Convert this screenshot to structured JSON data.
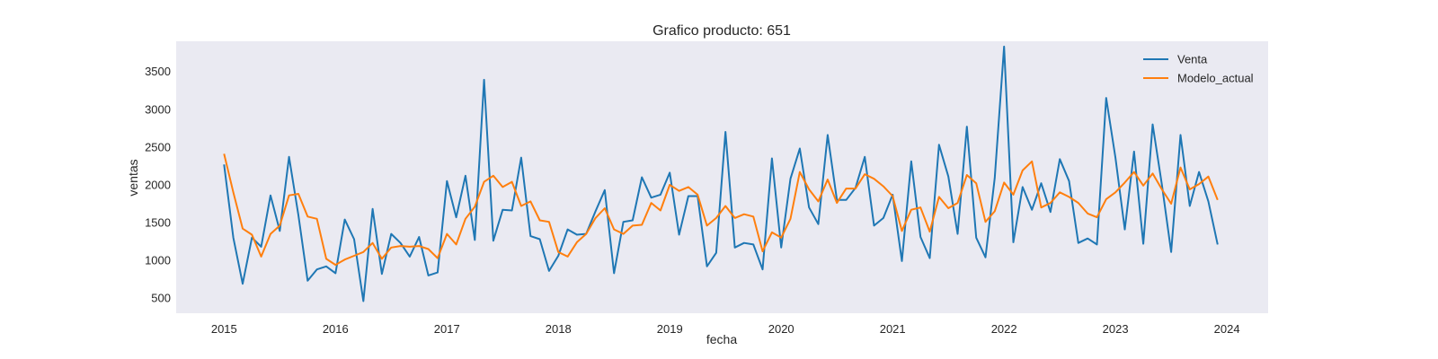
{
  "chart_data": {
    "type": "line",
    "title": "Grafico producto: 651",
    "xlabel": "fecha",
    "ylabel": "ventas",
    "xlim": [
      2014.57,
      2024.37
    ],
    "ylim": [
      300,
      3900
    ],
    "xticks": [
      2015,
      2016,
      2017,
      2018,
      2019,
      2020,
      2021,
      2022,
      2023,
      2024
    ],
    "xtick_labels": [
      "2015",
      "2016",
      "2017",
      "2018",
      "2019",
      "2020",
      "2021",
      "2022",
      "2023",
      "2024"
    ],
    "yticks": [
      500,
      1000,
      1500,
      2000,
      2500,
      3000,
      3500
    ],
    "ytick_labels": [
      "500",
      "1000",
      "1500",
      "2000",
      "2500",
      "3000",
      "3500"
    ],
    "x_start": 2015,
    "x_step": 0.0833333,
    "legend_position": "top-right",
    "series": [
      {
        "name": "Venta",
        "color": "#1f77b4",
        "values": [
          2270,
          1300,
          690,
          1300,
          1180,
          1860,
          1390,
          2370,
          1600,
          730,
          880,
          920,
          830,
          1540,
          1280,
          460,
          1680,
          820,
          1350,
          1230,
          1050,
          1310,
          800,
          840,
          2050,
          1570,
          2120,
          1270,
          3390,
          1260,
          1670,
          1660,
          2360,
          1320,
          1280,
          860,
          1060,
          1410,
          1340,
          1350,
          1650,
          1930,
          830,
          1510,
          1530,
          2100,
          1830,
          1870,
          2160,
          1340,
          1850,
          1850,
          920,
          1100,
          2700,
          1170,
          1230,
          1210,
          880,
          2350,
          1170,
          2080,
          2480,
          1700,
          1480,
          2660,
          1800,
          1800,
          1960,
          2370,
          1460,
          1560,
          1870,
          990,
          2310,
          1310,
          1030,
          2530,
          2110,
          1350,
          2770,
          1300,
          1040,
          2090,
          3830,
          1240,
          1970,
          1670,
          2020,
          1640,
          2340,
          2050,
          1230,
          1290,
          1210,
          3150,
          2360,
          1410,
          2440,
          1220,
          2800,
          2000,
          1110,
          2660,
          1720,
          2170,
          1780,
          1210
        ]
      },
      {
        "name": "Modelo_actual",
        "color": "#ff7f0e",
        "values": [
          2410,
          1900,
          1420,
          1340,
          1050,
          1350,
          1460,
          1860,
          1880,
          1580,
          1550,
          1020,
          940,
          1010,
          1060,
          1110,
          1230,
          1020,
          1170,
          1190,
          1180,
          1190,
          1150,
          1030,
          1350,
          1210,
          1550,
          1710,
          2040,
          2120,
          1970,
          2040,
          1720,
          1780,
          1530,
          1510,
          1110,
          1050,
          1240,
          1350,
          1560,
          1690,
          1410,
          1350,
          1460,
          1470,
          1760,
          1660,
          2000,
          1920,
          1970,
          1870,
          1460,
          1560,
          1720,
          1560,
          1610,
          1580,
          1120,
          1370,
          1300,
          1550,
          2170,
          1940,
          1780,
          2070,
          1760,
          1950,
          1950,
          2140,
          2080,
          1980,
          1850,
          1390,
          1670,
          1700,
          1380,
          1840,
          1690,
          1760,
          2130,
          2020,
          1510,
          1650,
          2030,
          1870,
          2190,
          2310,
          1700,
          1760,
          1900,
          1840,
          1760,
          1620,
          1570,
          1810,
          1900,
          2030,
          2170,
          1990,
          2150,
          1940,
          1750,
          2230,
          1940,
          2010,
          2110,
          1800
        ]
      }
    ]
  }
}
